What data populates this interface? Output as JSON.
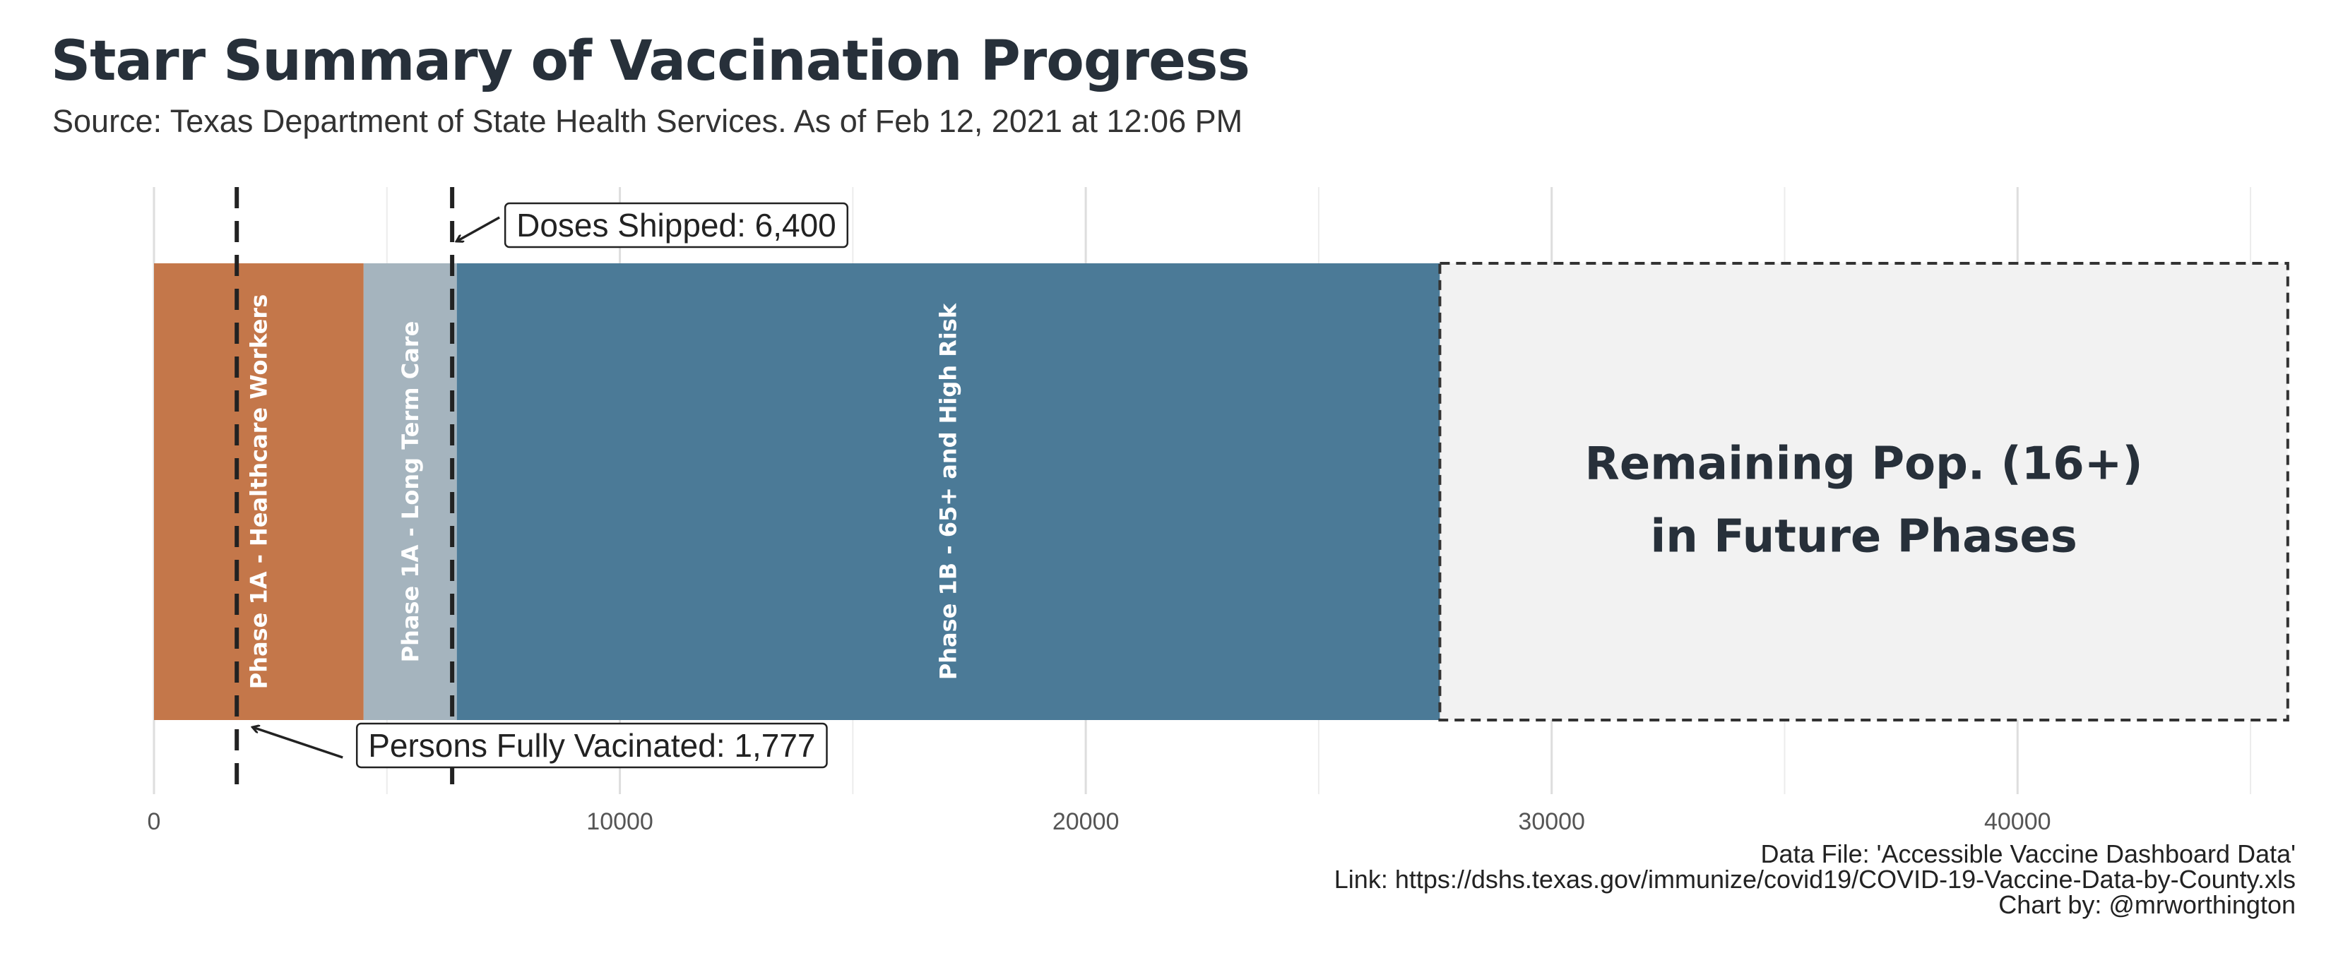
{
  "header": {
    "title": "Starr Summary of Vaccination Progress",
    "subtitle": "Source: Texas Department of State Health Services. As of Feb 12, 2021 at 12:06 PM"
  },
  "chart_data": {
    "type": "bar",
    "orientation": "horizontal-stacked",
    "xlim": [
      0,
      46000
    ],
    "x_ticks": [
      0,
      10000,
      20000,
      30000,
      40000
    ],
    "x_tick_labels": [
      "0",
      "10000",
      "20000",
      "30000",
      "40000"
    ],
    "grid": true,
    "segments": [
      {
        "label": "Phase 1A - Healthcare Workers",
        "start": 0,
        "end": 4500,
        "color": "#c4774a"
      },
      {
        "label": "Phase 1A - Long Term Care",
        "start": 4500,
        "end": 6500,
        "color": "#a5b4be"
      },
      {
        "label": "Phase 1B - 65+ and High Risk",
        "start": 6500,
        "end": 27600,
        "color": "#4b7a97"
      },
      {
        "label_lines": [
          "Remaining Pop. (16+)",
          "in Future Phases"
        ],
        "start": 27600,
        "end": 45800,
        "color": "#f2f2f2",
        "dashed_border": true
      }
    ],
    "reference_lines": [
      {
        "label": "Doses Shipped: 6,400",
        "value": 6400
      },
      {
        "label": "Persons Fully Vacinated: 1,777",
        "value": 1777
      }
    ]
  },
  "caption": {
    "line1": "Data File: 'Accessible Vaccine Dashboard Data'",
    "line2": "Link: https://dshs.texas.gov/immunize/covid19/COVID-19-Vaccine-Data-by-County.xls",
    "line3": "Chart by: @mrworthington"
  }
}
